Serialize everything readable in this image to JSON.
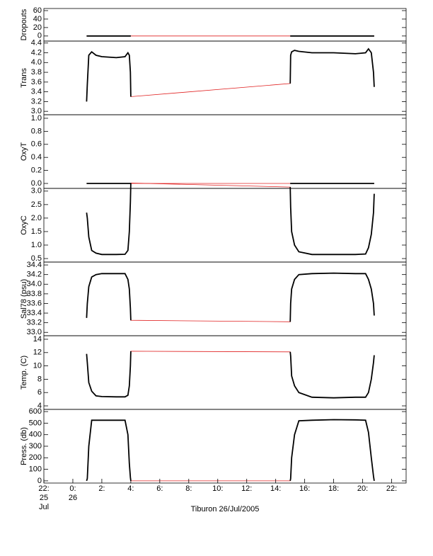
{
  "chart_data": {
    "type": "line",
    "xlabel": "Tiburon 26/Jul/2005",
    "x": [
      0.95,
      1.0,
      1.1,
      1.3,
      1.6,
      2.0,
      3.0,
      3.6,
      3.8,
      3.9,
      3.97,
      4.0,
      9.5,
      15.0,
      15.03,
      15.1,
      15.3,
      15.6,
      16.5,
      18,
      19.5,
      20.2,
      20.4,
      20.6,
      20.75,
      20.8
    ],
    "xlim": [
      -2,
      23
    ],
    "xticks": [
      {
        "value": -2,
        "label": "22:"
      },
      {
        "value": 0,
        "label": "0:"
      },
      {
        "value": 2,
        "label": "2:"
      },
      {
        "value": 4,
        "label": "4:"
      },
      {
        "value": 6,
        "label": "6:"
      },
      {
        "value": 8,
        "label": "8:"
      },
      {
        "value": 10,
        "label": "10:"
      },
      {
        "value": 12,
        "label": "12:"
      },
      {
        "value": 14,
        "label": "14:"
      },
      {
        "value": 16,
        "label": "16:"
      },
      {
        "value": 18,
        "label": "18:"
      },
      {
        "value": 20,
        "label": "20:"
      },
      {
        "value": 22,
        "label": "22:"
      }
    ],
    "date_labels": [
      {
        "value": -2,
        "label": "25"
      },
      {
        "value": 0,
        "label": "26"
      }
    ],
    "month_label": "Jul",
    "data_color": "#000000",
    "connect_color": "#e02020",
    "panels": [
      {
        "ylabel": "Dropouts",
        "ylim": [
          -12,
          65
        ],
        "yticks": [
          0,
          20,
          40,
          60
        ],
        "values": [
          0,
          0,
          0,
          0,
          0,
          0,
          0,
          0,
          0,
          0,
          0,
          0,
          null,
          0,
          0,
          0,
          0,
          0,
          0,
          0,
          0,
          0,
          0,
          0,
          0,
          0
        ]
      },
      {
        "ylabel": "Trans",
        "ylim": [
          2.93,
          4.44
        ],
        "yticks": [
          {
            "value": 3.0,
            "label": "3.0"
          },
          3.2,
          3.4,
          3.6,
          3.8,
          {
            "value": 4.0,
            "label": "4.0"
          },
          4.2,
          4.4
        ],
        "values": [
          3.2,
          3.55,
          4.15,
          4.22,
          4.15,
          4.12,
          4.1,
          4.12,
          4.2,
          4.15,
          3.8,
          3.3,
          null,
          3.57,
          4.15,
          4.22,
          4.25,
          4.23,
          4.2,
          4.2,
          4.18,
          4.2,
          4.28,
          4.2,
          3.8,
          3.5
        ]
      },
      {
        "ylabel": "OxyT",
        "ylim": [
          -0.076,
          1.054
        ],
        "yticks": [
          {
            "value": 0,
            "label": "0.0"
          },
          0.2,
          0.4,
          0.6,
          0.8,
          {
            "value": 1,
            "label": "1.0"
          }
        ],
        "values": [
          0,
          0,
          0,
          0,
          0,
          0,
          0,
          0,
          0,
          0,
          0,
          0,
          null,
          0,
          0,
          0,
          0,
          0,
          0,
          0,
          0,
          0,
          0,
          0,
          0,
          0
        ]
      },
      {
        "ylabel": "OxyC",
        "ylim": [
          0.37,
          3.1
        ],
        "yticks": [
          0.5,
          {
            "value": 1,
            "label": "1.0"
          },
          1.5,
          {
            "value": 2,
            "label": "2.0"
          },
          2.5,
          {
            "value": 3,
            "label": "3.0"
          }
        ],
        "values": [
          2.2,
          2.0,
          1.3,
          0.8,
          0.7,
          0.65,
          0.65,
          0.66,
          0.8,
          1.5,
          2.6,
          3.3,
          null,
          3.15,
          2.4,
          1.5,
          1.0,
          0.75,
          0.65,
          0.65,
          0.65,
          0.67,
          0.9,
          1.4,
          2.2,
          2.9
        ]
      },
      {
        "ylabel": "Sal78 (psu)",
        "ylim": [
          32.93,
          34.46
        ],
        "yticks": [
          {
            "value": 33,
            "label": "33.0"
          },
          33.2,
          33.4,
          33.6,
          33.8,
          {
            "value": 34,
            "label": "34.0"
          },
          34.2,
          34.4
        ],
        "values": [
          33.3,
          33.6,
          33.95,
          34.15,
          34.2,
          34.22,
          34.22,
          34.22,
          34.1,
          33.9,
          33.5,
          33.25,
          null,
          33.22,
          33.6,
          33.9,
          34.1,
          34.2,
          34.22,
          34.23,
          34.22,
          34.22,
          34.1,
          33.9,
          33.6,
          33.35
        ]
      },
      {
        "ylabel": "Temp. (C)",
        "ylim": [
          3.47,
          14.53
        ],
        "yticks": [
          4,
          6,
          8,
          10,
          12,
          14
        ],
        "values": [
          11.8,
          10.5,
          7.5,
          6.2,
          5.5,
          5.4,
          5.35,
          5.35,
          5.6,
          7,
          10,
          12.2,
          null,
          12.1,
          11.5,
          8.5,
          7,
          6,
          5.3,
          5.2,
          5.3,
          5.3,
          6,
          8,
          10.5,
          11.6
        ]
      },
      {
        "ylabel": "Press. (db)",
        "ylim": [
          -19,
          619
        ],
        "yticks": [
          0,
          100,
          200,
          300,
          400,
          500,
          600
        ],
        "values": [
          0,
          20,
          300,
          525,
          525,
          525,
          525,
          525,
          400,
          150,
          30,
          0,
          null,
          0,
          20,
          200,
          400,
          520,
          525,
          530,
          528,
          525,
          420,
          200,
          40,
          0
        ]
      }
    ]
  }
}
